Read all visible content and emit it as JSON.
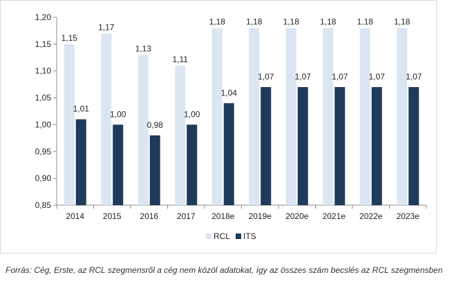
{
  "chart_data": {
    "type": "bar",
    "title": "",
    "xlabel": "",
    "ylabel": "",
    "categories": [
      "2014",
      "2015",
      "2016",
      "2017",
      "2018e",
      "2019e",
      "2020e",
      "2021e",
      "2022e",
      "2023e"
    ],
    "series": [
      {
        "name": "RCL",
        "color": "#dce6f2",
        "values": [
          1.15,
          1.17,
          1.13,
          1.11,
          1.18,
          1.18,
          1.18,
          1.18,
          1.18,
          1.18
        ],
        "labels": [
          "1,15",
          "1,17",
          "1,13",
          "1,11",
          "1,18",
          "1,18",
          "1,18",
          "1,18",
          "1,18",
          "1,18"
        ]
      },
      {
        "name": "ITS",
        "color": "#1f3a5a",
        "values": [
          1.01,
          1.0,
          0.98,
          1.0,
          1.04,
          1.07,
          1.07,
          1.07,
          1.07,
          1.07
        ],
        "labels": [
          "1,01",
          "1,00",
          "0,98",
          "1,00",
          "1,04",
          "1,07",
          "1,07",
          "1,07",
          "1,07",
          "1,07"
        ]
      }
    ],
    "ylim": [
      0.85,
      1.2
    ],
    "yticks": [
      0.85,
      0.9,
      0.95,
      1.0,
      1.05,
      1.1,
      1.15,
      1.2
    ],
    "ytick_labels": [
      "0,85",
      "0,90",
      "0,95",
      "1,00",
      "1,05",
      "1,10",
      "1,15",
      "1,20"
    ],
    "grid": false,
    "legend_position": "bottom-center"
  },
  "source_note": "Forrás: Cég, Erste, az RCL szegmensről a cég nem közöl adatokat, így az összes szám becslés az RCL szegmensben",
  "colors": {
    "axis": "#8c8c8c",
    "frame": "#d9d9d9",
    "text": "#222222"
  }
}
